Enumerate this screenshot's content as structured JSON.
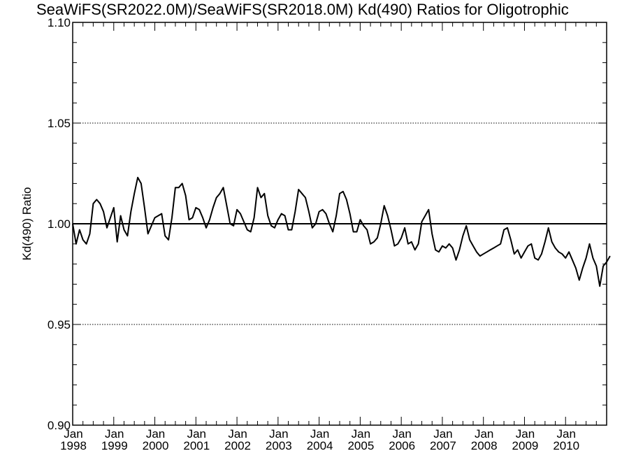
{
  "chart_data": {
    "type": "line",
    "title": "SeaWiFS(SR2022.0M)/SeaWiFS(SR2018.0M)  Kd(490) Ratios for Oligotrophic",
    "xlabel": "",
    "ylabel": "Kd(490) Ratio",
    "ylim": [
      0.9,
      1.1
    ],
    "xlim": [
      "1998-01",
      "2010-12"
    ],
    "yticks": [
      "0.90",
      "0.95",
      "1.00",
      "1.05",
      "1.10"
    ],
    "xticks": [
      {
        "month": "Jan",
        "year": "1998"
      },
      {
        "month": "Jan",
        "year": "1999"
      },
      {
        "month": "Jan",
        "year": "2000"
      },
      {
        "month": "Jan",
        "year": "2001"
      },
      {
        "month": "Jan",
        "year": "2002"
      },
      {
        "month": "Jan",
        "year": "2003"
      },
      {
        "month": "Jan",
        "year": "2004"
      },
      {
        "month": "Jan",
        "year": "2005"
      },
      {
        "month": "Jan",
        "year": "2006"
      },
      {
        "month": "Jan",
        "year": "2007"
      },
      {
        "month": "Jan",
        "year": "2008"
      },
      {
        "month": "Jan",
        "year": "2009"
      },
      {
        "month": "Jan",
        "year": "2010"
      }
    ],
    "reference_lines": [
      {
        "y": 1.0,
        "style": "solid"
      },
      {
        "y": 1.05,
        "style": "dotted"
      },
      {
        "y": 0.95,
        "style": "dotted"
      }
    ],
    "grid": false,
    "series": [
      {
        "start": "1998-01",
        "frequency": "monthly",
        "values": [
          1.0,
          0.99,
          0.997,
          0.992,
          0.99,
          0.995,
          1.01,
          1.012,
          1.01,
          1.006,
          0.998,
          1.003,
          1.008,
          0.991,
          1.004,
          0.997,
          0.994,
          1.006,
          1.015,
          1.023,
          1.02,
          1.008,
          0.995,
          0.999,
          1.003,
          1.004,
          1.005,
          0.994,
          0.992,
          1.003,
          1.018,
          1.018,
          1.02,
          1.014,
          1.002,
          1.003,
          1.008,
          1.007,
          1.003,
          0.998,
          1.002,
          1.008,
          1.013,
          1.015,
          1.018,
          1.009,
          1.0,
          0.999,
          1.007,
          1.005,
          1.001,
          0.997,
          0.996,
          1.003,
          1.018,
          1.013,
          1.015,
          1.004,
          0.999,
          0.998,
          1.002,
          1.005,
          1.004,
          0.997,
          0.997,
          1.006,
          1.017,
          1.015,
          1.013,
          1.006,
          0.998,
          1.0,
          1.006,
          1.007,
          1.005,
          1.0,
          0.996,
          1.004,
          1.015,
          1.016,
          1.012,
          1.005,
          0.996,
          0.996,
          1.002,
          0.999,
          0.997,
          0.99,
          0.991,
          0.993,
          1.0,
          1.009,
          1.004,
          0.997,
          0.989,
          0.99,
          0.993,
          0.998,
          0.99,
          0.991,
          0.987,
          0.99,
          1.001,
          1.004,
          1.007,
          0.995,
          0.987,
          0.986,
          0.989,
          0.988,
          0.99,
          0.988,
          0.982,
          0.987,
          0.994,
          0.999,
          0.992,
          0.989,
          0.986,
          0.984,
          0.985,
          0.986,
          0.987,
          0.988,
          0.989,
          0.99,
          0.997,
          0.998,
          0.992,
          0.985,
          0.987,
          0.983,
          0.986,
          0.989,
          0.99,
          0.983,
          0.982,
          0.985,
          0.991,
          0.998,
          0.991,
          0.988,
          0.986,
          0.985,
          0.983,
          0.986,
          0.982,
          0.978,
          0.972,
          0.978,
          0.983,
          0.99,
          0.983,
          0.979,
          0.969,
          0.979,
          0.981,
          0.984
        ]
      }
    ]
  }
}
